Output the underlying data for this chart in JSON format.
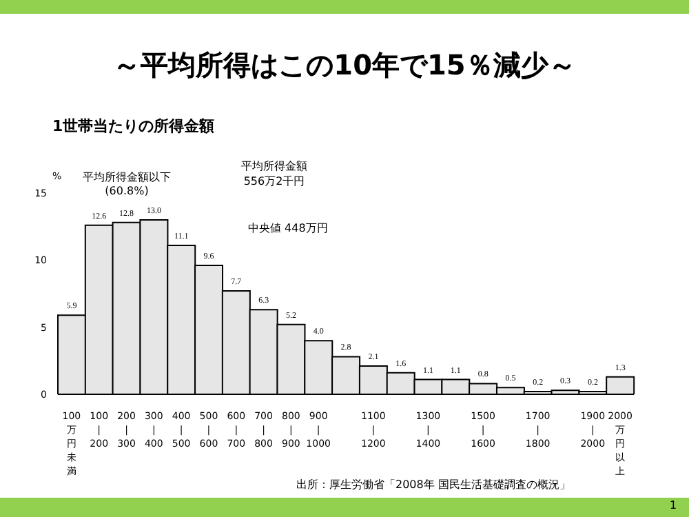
{
  "chart_data": {
    "type": "bar",
    "title": "～平均所得はこの10年で15％減少～",
    "subtitle": "1世帯当たりの所得金額",
    "ylabel": "%",
    "categories": [
      "100万円未満",
      "100\n|\n200",
      "200\n|\n300",
      "300\n|\n400",
      "400\n|\n500",
      "500\n|\n600",
      "600\n|\n700",
      "700\n|\n800",
      "800\n|\n900",
      "900\n|\n1000",
      null,
      "1100\n|\n1200",
      null,
      "1300\n|\n1400",
      null,
      "1500\n|\n1600",
      null,
      "1700\n|\n1800",
      null,
      "1900\n|\n2000",
      "2000万円以上"
    ],
    "values": [
      5.9,
      12.6,
      12.8,
      13.0,
      11.1,
      9.6,
      7.7,
      6.3,
      5.2,
      4.0,
      2.8,
      2.1,
      1.6,
      1.1,
      1.1,
      0.8,
      0.5,
      0.2,
      0.3,
      0.2,
      1.3
    ],
    "color": "#e6e6e6",
    "value_labels": [
      "5.9",
      "12.6",
      "12.8",
      "13.0",
      "11.1",
      "9.6",
      "7.7",
      "6.3",
      "5.2",
      "4.0",
      "2.8",
      "2.1",
      "1.6",
      "1.1",
      "1.1",
      "0.8",
      "0.5",
      "0.2",
      "0.3",
      "0.2",
      "1.3"
    ],
    "ylim": [
      0,
      15
    ],
    "yticks": [
      0,
      5,
      10,
      15
    ],
    "grid": false,
    "legend": false,
    "annotations": [
      "平均所得金額以下\n(60.8%)",
      "平均所得金額\n556万2千円",
      "中央値 448万円",
      "出所：厚生労働省「2008年 国民生活基礎調査の概況」",
      "1"
    ]
  }
}
